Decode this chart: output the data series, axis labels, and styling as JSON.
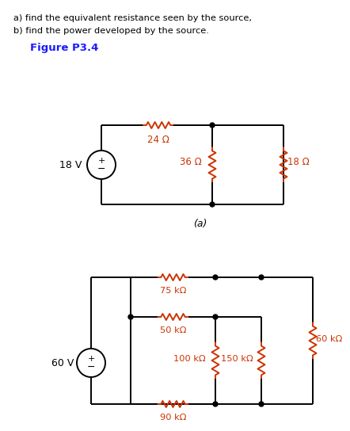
{
  "text_a": "a) find the equivalent resistance seen by the source,",
  "text_b": "b) find the power developed by the source.",
  "figure_label": "Figure P3.4",
  "circuit_a_label": "(a)",
  "source_a_voltage": "18 V",
  "res_a1": "24 Ω",
  "res_a2": "36 Ω",
  "res_a3": "18 Ω",
  "source_b_voltage": "60 V",
  "res_b1": "75 kΩ",
  "res_b2": "50 kΩ",
  "res_b3": "100 kΩ",
  "res_b4": "150 kΩ",
  "res_b5": "60 kΩ",
  "res_b6": "90 kΩ",
  "bg_color": "#ffffff",
  "line_color": "#000000",
  "text_color": "#000000",
  "figure_label_color": "#1a1aff",
  "resistor_color": "#cc3300",
  "dot_color": "#000000",
  "lw": 1.4
}
